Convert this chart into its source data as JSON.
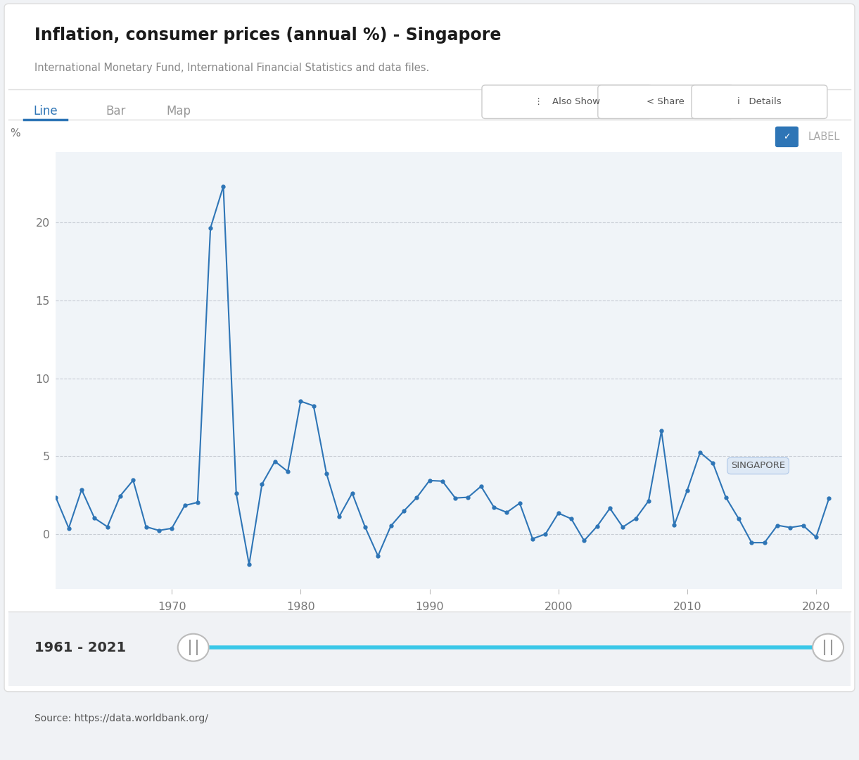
{
  "title": "Inflation, consumer prices (annual %) - Singapore",
  "subtitle": "International Monetary Fund, International Financial Statistics and data files.",
  "source": "Source: https://data.worldbank.org/",
  "ylabel": "%",
  "years": [
    1961,
    1962,
    1963,
    1964,
    1965,
    1966,
    1967,
    1968,
    1969,
    1970,
    1971,
    1972,
    1973,
    1974,
    1975,
    1976,
    1977,
    1978,
    1979,
    1980,
    1981,
    1982,
    1983,
    1984,
    1985,
    1986,
    1987,
    1988,
    1989,
    1990,
    1991,
    1992,
    1993,
    1994,
    1995,
    1996,
    1997,
    1998,
    1999,
    2000,
    2001,
    2002,
    2003,
    2004,
    2005,
    2006,
    2007,
    2008,
    2009,
    2010,
    2011,
    2012,
    2013,
    2014,
    2015,
    2016,
    2017,
    2018,
    2019,
    2020,
    2021
  ],
  "values": [
    2.37,
    0.4,
    2.87,
    1.04,
    0.49,
    2.47,
    3.47,
    0.49,
    0.25,
    0.39,
    1.85,
    2.05,
    19.63,
    22.3,
    2.62,
    -1.93,
    3.22,
    4.68,
    4.03,
    8.53,
    8.24,
    3.91,
    1.15,
    2.64,
    0.47,
    -1.38,
    0.54,
    1.49,
    2.35,
    3.45,
    3.41,
    2.33,
    2.38,
    3.08,
    1.74,
    1.41,
    2.0,
    -0.28,
    0.02,
    1.36,
    1.0,
    -0.4,
    0.51,
    1.67,
    0.47,
    1.01,
    2.14,
    6.63,
    0.61,
    2.82,
    5.25,
    4.56,
    2.37,
    1.0,
    -0.53,
    -0.53,
    0.58,
    0.44,
    0.57,
    -0.18,
    2.3
  ],
  "line_color": "#2E75B6",
  "bg_color": "#f0f2f5",
  "plot_bg": "#f0f4f8",
  "yticks": [
    0,
    5,
    10,
    15,
    20
  ],
  "xtick_years": [
    1970,
    1980,
    1990,
    2000,
    2010,
    2020
  ],
  "label_text": "SINGAPORE",
  "date_range": "1961 - 2021",
  "ylim_min": -3.5,
  "ylim_max": 24.5
}
